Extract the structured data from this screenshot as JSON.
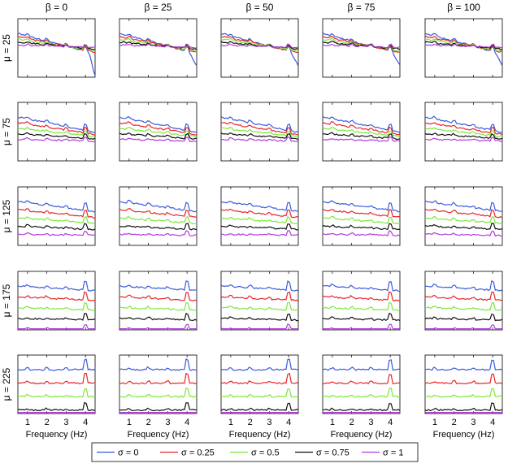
{
  "chart_data": {
    "type": "line",
    "layout": "grid",
    "column_titles": [
      "β = 0",
      "β = 25",
      "β = 50",
      "β = 75",
      "β = 100"
    ],
    "row_titles": [
      "μ = 25",
      "μ = 75",
      "μ = 125",
      "μ = 175",
      "μ = 225"
    ],
    "xlabel": "Frequency (Hz)",
    "xticks": [
      "1",
      "2",
      "3",
      "4"
    ],
    "xlim": [
      0.5,
      4.5
    ],
    "grid": false,
    "legend_placement": "bottom-center",
    "series": [
      {
        "name": "σ = 0",
        "color": "#3b5bdb"
      },
      {
        "name": "σ = 0.25",
        "color": "#e8262a"
      },
      {
        "name": "σ = 0.5",
        "color": "#7ce83a"
      },
      {
        "name": "σ = 0.75",
        "color": "#111111"
      },
      {
        "name": "σ = 1",
        "color": "#b23bdd"
      }
    ]
  }
}
